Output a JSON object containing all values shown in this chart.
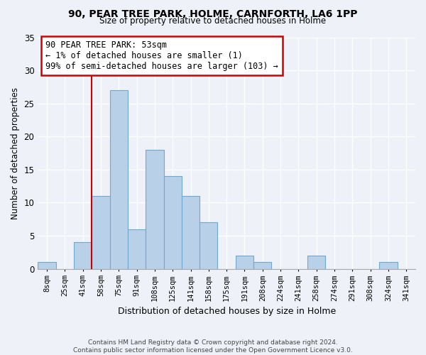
{
  "title": "90, PEAR TREE PARK, HOLME, CARNFORTH, LA6 1PP",
  "subtitle": "Size of property relative to detached houses in Holme",
  "xlabel": "Distribution of detached houses by size in Holme",
  "ylabel": "Number of detached properties",
  "bin_labels": [
    "8sqm",
    "25sqm",
    "41sqm",
    "58sqm",
    "75sqm",
    "91sqm",
    "108sqm",
    "125sqm",
    "141sqm",
    "158sqm",
    "175sqm",
    "191sqm",
    "208sqm",
    "224sqm",
    "241sqm",
    "258sqm",
    "274sqm",
    "291sqm",
    "308sqm",
    "324sqm",
    "341sqm"
  ],
  "bar_values": [
    1,
    0,
    4,
    11,
    27,
    6,
    18,
    14,
    11,
    7,
    0,
    2,
    1,
    0,
    0,
    2,
    0,
    0,
    0,
    1,
    0
  ],
  "bar_color": "#b8d0e8",
  "bar_edge_color": "#6fa8d0",
  "vline_x_index": 3,
  "vline_color": "#cc0000",
  "annotation_lines": [
    "90 PEAR TREE PARK: 53sqm",
    "← 1% of detached houses are smaller (1)",
    "99% of semi-detached houses are larger (103) →"
  ],
  "annotation_box_color": "#ffffff",
  "annotation_box_edge": "#cc0000",
  "ylim": [
    0,
    35
  ],
  "yticks": [
    0,
    5,
    10,
    15,
    20,
    25,
    30,
    35
  ],
  "footer_line1": "Contains HM Land Registry data © Crown copyright and database right 2024.",
  "footer_line2": "Contains public sector information licensed under the Open Government Licence v3.0.",
  "bg_color": "#eef2f8",
  "plot_bg_color": "#eef2f8",
  "grid_color": "#ffffff"
}
